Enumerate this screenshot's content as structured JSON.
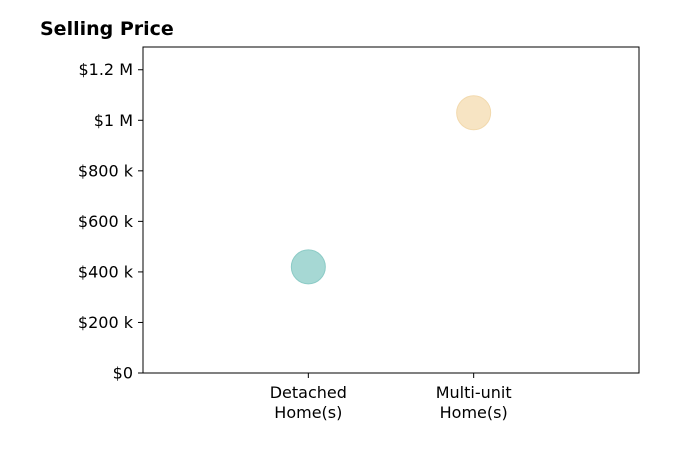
{
  "chart_data": {
    "type": "scatter",
    "title": "Selling Price",
    "xlabel": "",
    "ylabel": "",
    "categories": [
      [
        "Detached",
        "Home(s)"
      ],
      [
        "Multi-unit",
        "Home(s)"
      ]
    ],
    "values": [
      420000,
      1030000
    ],
    "point_colors": [
      "#a6d8d4",
      "#f7e4c3"
    ],
    "point_edge_colors": [
      "#8ccbc6",
      "#f2d9ad"
    ],
    "ylim": [
      0,
      1290000
    ],
    "y_ticks": [
      0,
      200000,
      400000,
      600000,
      800000,
      1000000,
      1200000
    ],
    "y_tick_labels": [
      "$0",
      "$200 k",
      "$400 k",
      "$600 k",
      "$800 k",
      "$1 M",
      "$1.2 M"
    ],
    "x_range": [
      -1,
      2
    ],
    "grid": false,
    "legend": "none"
  }
}
